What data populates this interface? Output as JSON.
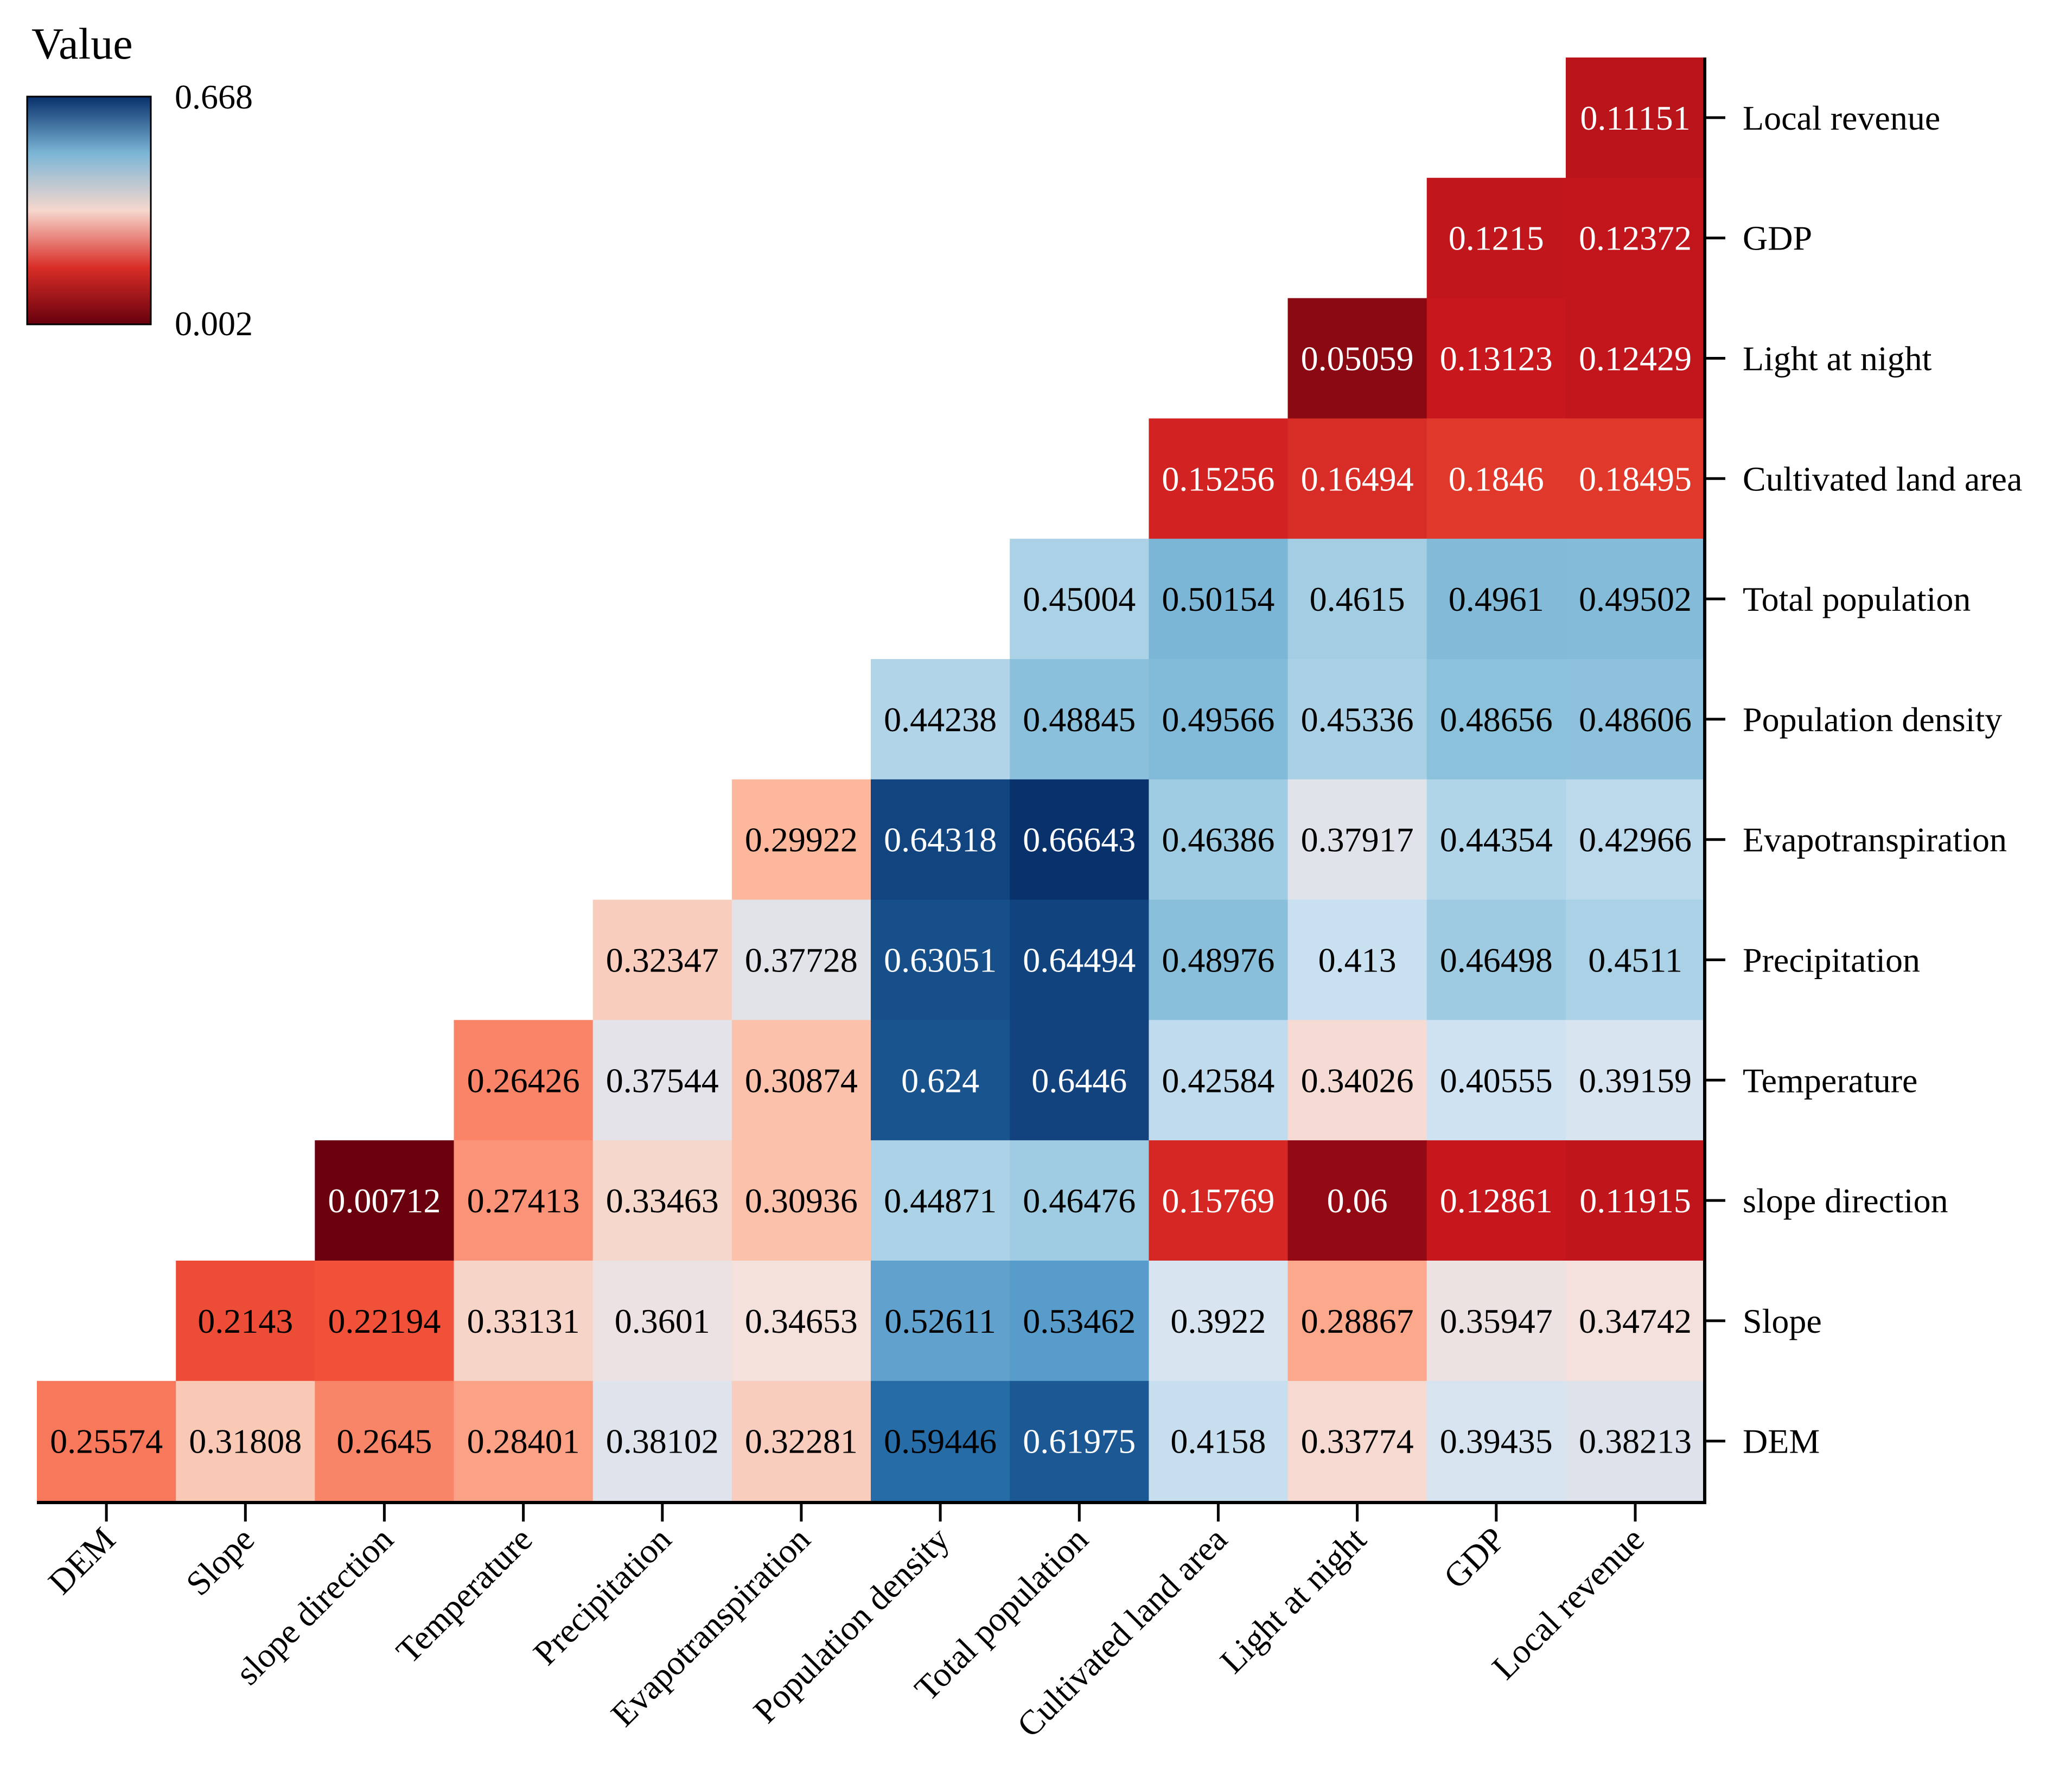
{
  "chart_data": {
    "type": "heatmap",
    "title": "",
    "legend": {
      "title": "Value",
      "max": 0.668,
      "min": 0.002,
      "max_label": "0.668",
      "min_label": "0.002"
    },
    "colors": {
      "low": "#67000d",
      "mid": "#f7f7f7",
      "high": "#08306b",
      "text_dark": "#000000",
      "text_light": "#ffffff"
    },
    "x_labels": [
      "DEM",
      "Slope",
      "slope direction",
      "Temperature",
      "Precipitation",
      "Evapotranspiration",
      "Population density",
      "Total population",
      "Cultivated land area",
      "Light at night",
      "GDP",
      "Local revenue"
    ],
    "y_labels_top_to_bottom": [
      "Local revenue",
      "GDP",
      "Light at night",
      "Cultivated land area",
      "Total population",
      "Population density",
      "Evapotranspiration",
      "Precipitation",
      "Temperature",
      "slope direction",
      "Slope",
      "DEM"
    ],
    "rows_top_to_bottom": [
      [
        null,
        null,
        null,
        null,
        null,
        null,
        null,
        null,
        null,
        null,
        null,
        "0.11151"
      ],
      [
        null,
        null,
        null,
        null,
        null,
        null,
        null,
        null,
        null,
        null,
        "0.1215",
        "0.12372"
      ],
      [
        null,
        null,
        null,
        null,
        null,
        null,
        null,
        null,
        null,
        "0.05059",
        "0.13123",
        "0.12429"
      ],
      [
        null,
        null,
        null,
        null,
        null,
        null,
        null,
        null,
        "0.15256",
        "0.16494",
        "0.1846",
        "0.18495"
      ],
      [
        null,
        null,
        null,
        null,
        null,
        null,
        null,
        "0.45004",
        "0.50154",
        "0.4615",
        "0.4961",
        "0.49502"
      ],
      [
        null,
        null,
        null,
        null,
        null,
        null,
        "0.44238",
        "0.48845",
        "0.49566",
        "0.45336",
        "0.48656",
        "0.48606"
      ],
      [
        null,
        null,
        null,
        null,
        null,
        "0.29922",
        "0.64318",
        "0.66643",
        "0.46386",
        "0.37917",
        "0.44354",
        "0.42966"
      ],
      [
        null,
        null,
        null,
        null,
        "0.32347",
        "0.37728",
        "0.63051",
        "0.64494",
        "0.48976",
        "0.413",
        "0.46498",
        "0.4511"
      ],
      [
        null,
        null,
        null,
        "0.26426",
        "0.37544",
        "0.30874",
        "0.624",
        "0.6446",
        "0.42584",
        "0.34026",
        "0.40555",
        "0.39159"
      ],
      [
        null,
        null,
        "0.00712",
        "0.27413",
        "0.33463",
        "0.30936",
        "0.44871",
        "0.46476",
        "0.15769",
        "0.06",
        "0.12861",
        "0.11915"
      ],
      [
        null,
        "0.2143",
        "0.22194",
        "0.33131",
        "0.3601",
        "0.34653",
        "0.52611",
        "0.53462",
        "0.3922",
        "0.28867",
        "0.35947",
        "0.34742"
      ],
      [
        "0.25574",
        "0.31808",
        "0.2645",
        "0.28401",
        "0.38102",
        "0.32281",
        "0.59446",
        "0.61975",
        "0.4158",
        "0.33774",
        "0.39435",
        "0.38213"
      ]
    ]
  }
}
